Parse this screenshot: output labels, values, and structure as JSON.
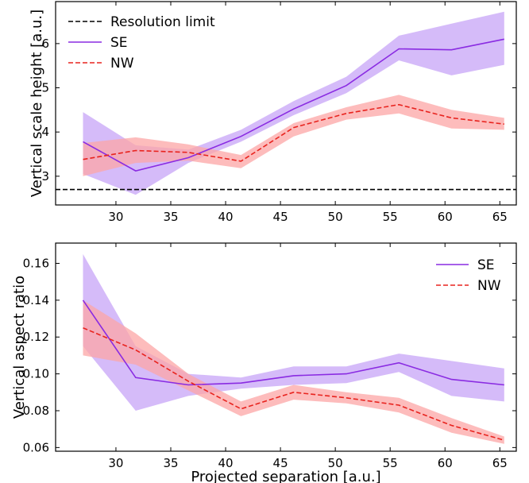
{
  "colors": {
    "se": "#8a2be2",
    "se_band": "#c7a4f7",
    "nw": "#e8231e",
    "nw_band": "#fca6a6",
    "limit": "#000000"
  },
  "chart_data": [
    {
      "type": "line",
      "xlabel": "",
      "ylabel": "Vertical scale height [a.u.]",
      "xlim": [
        24.5,
        66.5
      ],
      "ylim": [
        2.35,
        6.95
      ],
      "xticks": [
        30,
        35,
        40,
        45,
        50,
        55,
        60,
        65
      ],
      "yticks": [
        3,
        4,
        5,
        6
      ],
      "x": [
        27,
        31.8,
        36.6,
        41.4,
        46.2,
        51,
        55.8,
        60.6,
        65.4
      ],
      "legend": {
        "position": "top-left",
        "limit_label": "Resolution limit"
      },
      "hline": {
        "name": "Resolution limit",
        "value": 2.7
      },
      "series": [
        {
          "name": "SE",
          "values": [
            3.78,
            3.12,
            3.42,
            3.9,
            4.52,
            5.05,
            5.88,
            5.86,
            6.1
          ],
          "lower": [
            3.05,
            2.58,
            3.3,
            3.78,
            4.38,
            4.88,
            5.62,
            5.28,
            5.52
          ],
          "upper": [
            4.45,
            3.7,
            3.6,
            4.05,
            4.7,
            5.25,
            6.18,
            6.45,
            6.72
          ]
        },
        {
          "name": "NW",
          "values": [
            3.38,
            3.58,
            3.54,
            3.34,
            4.1,
            4.42,
            4.62,
            4.32,
            4.18
          ],
          "lower": [
            3.0,
            3.3,
            3.35,
            3.18,
            3.9,
            4.28,
            4.42,
            4.08,
            4.05
          ],
          "upper": [
            3.75,
            3.88,
            3.72,
            3.48,
            4.2,
            4.56,
            4.84,
            4.5,
            4.32
          ]
        }
      ]
    },
    {
      "type": "line",
      "xlabel": "Projected separation [a.u.]",
      "ylabel": "Vertical aspect ratio",
      "xlim": [
        24.5,
        66.5
      ],
      "ylim": [
        0.058,
        0.171
      ],
      "xticks": [
        30,
        35,
        40,
        45,
        50,
        55,
        60,
        65
      ],
      "yticks": [
        0.06,
        0.08,
        0.1,
        0.12,
        0.14,
        0.16
      ],
      "x": [
        27,
        31.8,
        36.6,
        41.4,
        46.2,
        51,
        55.8,
        60.6,
        65.4
      ],
      "legend": {
        "position": "top-right"
      },
      "series": [
        {
          "name": "SE",
          "values": [
            0.14,
            0.098,
            0.094,
            0.095,
            0.099,
            0.1,
            0.106,
            0.097,
            0.094
          ],
          "lower": [
            0.115,
            0.08,
            0.088,
            0.092,
            0.094,
            0.095,
            0.101,
            0.088,
            0.085
          ],
          "upper": [
            0.165,
            0.115,
            0.1,
            0.098,
            0.104,
            0.104,
            0.111,
            0.107,
            0.103
          ]
        },
        {
          "name": "NW",
          "values": [
            0.125,
            0.113,
            0.096,
            0.081,
            0.09,
            0.087,
            0.083,
            0.072,
            0.064
          ],
          "lower": [
            0.11,
            0.105,
            0.091,
            0.077,
            0.086,
            0.084,
            0.079,
            0.068,
            0.062
          ],
          "upper": [
            0.14,
            0.122,
            0.1,
            0.085,
            0.094,
            0.09,
            0.087,
            0.076,
            0.066
          ]
        }
      ]
    }
  ]
}
